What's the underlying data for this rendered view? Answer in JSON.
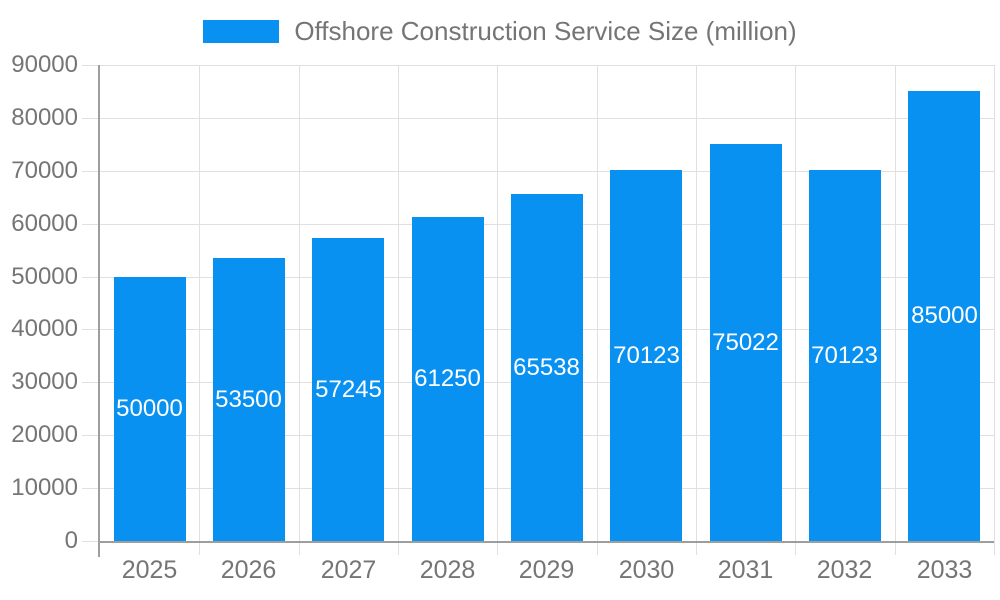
{
  "legend": {
    "label": "Offshore Construction Service Size (million)"
  },
  "chart_data": {
    "type": "bar",
    "title": "Offshore Construction Service Size (million)",
    "categories": [
      "2025",
      "2026",
      "2027",
      "2028",
      "2029",
      "2030",
      "2031",
      "2032",
      "2033"
    ],
    "values": [
      50000,
      53500,
      57245,
      61250,
      65538,
      70123,
      75022,
      70123,
      85000
    ],
    "series_name": "Offshore Construction Service Size (million)",
    "xlabel": "",
    "ylabel": "",
    "ylim": [
      0,
      90000
    ],
    "y_ticks": [
      0,
      10000,
      20000,
      30000,
      40000,
      50000,
      60000,
      70000,
      80000,
      90000
    ],
    "grid": true,
    "legend_position": "top-center",
    "value_labels": "inside-center",
    "colors": {
      "bar": "#0991f2",
      "grid": "#e0e0e0",
      "axis": "#9e9e9e",
      "tick_label": "#757575",
      "value_label": "#ffffff",
      "background": "#ffffff"
    }
  }
}
